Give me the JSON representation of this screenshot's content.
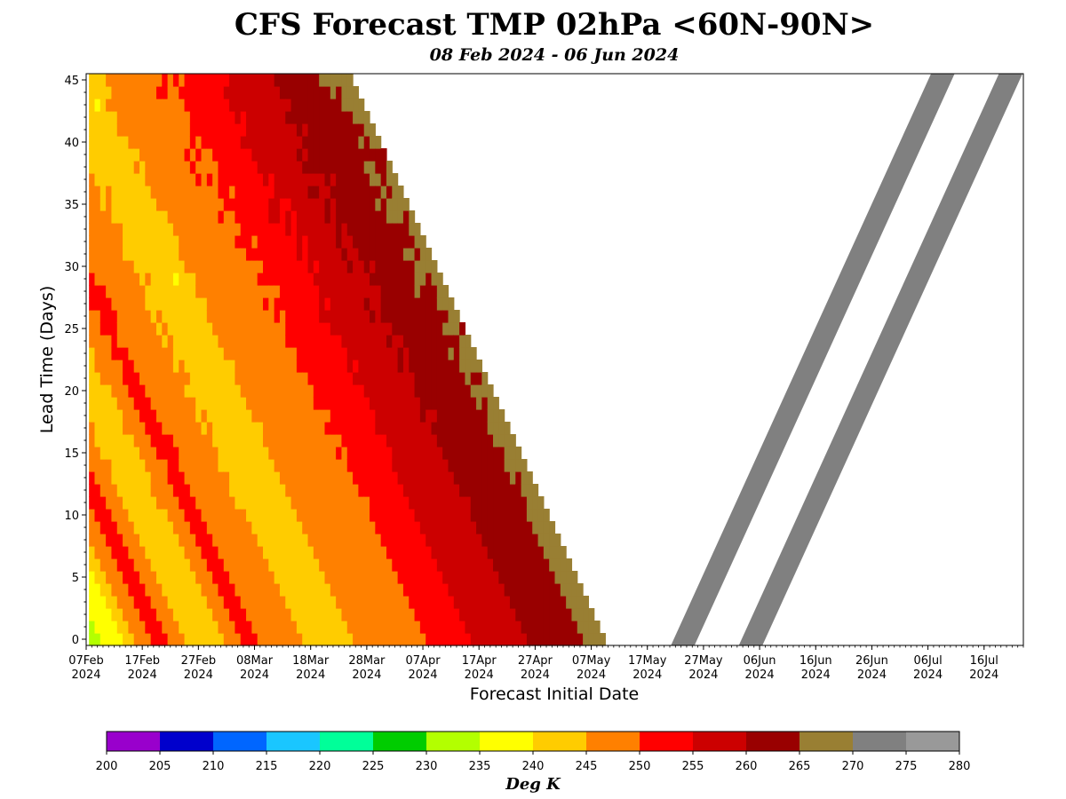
{
  "chart_data": {
    "type": "heatmap",
    "title": "CFS Forecast TMP 02hPa <60N-90N>",
    "subtitle": "08 Feb 2024 - 06 Jun 2024",
    "xlabel": "Forecast Initial Date",
    "ylabel": "Lead Time (Days)",
    "x_range": [
      "2024-02-07",
      "2024-07-23"
    ],
    "y_range": [
      -0.5,
      45.5
    ],
    "y_ticks": [
      0,
      5,
      10,
      15,
      20,
      25,
      30,
      35,
      40,
      45
    ],
    "x_ticks": [
      {
        "date": "2024-02-07",
        "label": [
          "07Feb",
          "2024"
        ]
      },
      {
        "date": "2024-02-17",
        "label": [
          "17Feb",
          "2024"
        ]
      },
      {
        "date": "2024-02-27",
        "label": [
          "27Feb",
          "2024"
        ]
      },
      {
        "date": "2024-03-08",
        "label": [
          "08Mar",
          "2024"
        ]
      },
      {
        "date": "2024-03-18",
        "label": [
          "18Mar",
          "2024"
        ]
      },
      {
        "date": "2024-03-28",
        "label": [
          "28Mar",
          "2024"
        ]
      },
      {
        "date": "2024-04-07",
        "label": [
          "07Apr",
          "2024"
        ]
      },
      {
        "date": "2024-04-17",
        "label": [
          "17Apr",
          "2024"
        ]
      },
      {
        "date": "2024-04-27",
        "label": [
          "27Apr",
          "2024"
        ]
      },
      {
        "date": "2024-05-07",
        "label": [
          "07May",
          "2024"
        ]
      },
      {
        "date": "2024-05-17",
        "label": [
          "17May",
          "2024"
        ]
      },
      {
        "date": "2024-05-27",
        "label": [
          "27May",
          "2024"
        ]
      },
      {
        "date": "2024-06-06",
        "label": [
          "06Jun",
          "2024"
        ]
      },
      {
        "date": "2024-06-16",
        "label": [
          "16Jun",
          "2024"
        ]
      },
      {
        "date": "2024-06-26",
        "label": [
          "26Jun",
          "2024"
        ]
      },
      {
        "date": "2024-07-06",
        "label": [
          "06Jul",
          "2024"
        ]
      },
      {
        "date": "2024-07-16",
        "label": [
          "16Jul",
          "2024"
        ]
      }
    ],
    "colorbar": {
      "label": "Deg K",
      "bounds": [
        200,
        205,
        210,
        215,
        220,
        225,
        230,
        235,
        240,
        245,
        250,
        255,
        260,
        265,
        270,
        275,
        280
      ],
      "colors": [
        "#9900cc",
        "#0000cc",
        "#0066ff",
        "#1ac6ff",
        "#00ff99",
        "#00cc00",
        "#b3ff00",
        "#ffff00",
        "#ffcc00",
        "#ff8000",
        "#ff0000",
        "#cc0000",
        "#990000",
        "#997f33",
        "#808080",
        "#999999"
      ]
    },
    "verification_temperature_K": [
      {
        "date": "2024-02-08",
        "value": 233
      },
      {
        "date": "2024-02-12",
        "value": 238
      },
      {
        "date": "2024-02-16",
        "value": 245
      },
      {
        "date": "2024-02-20",
        "value": 252
      },
      {
        "date": "2024-02-24",
        "value": 246
      },
      {
        "date": "2024-02-28",
        "value": 241
      },
      {
        "date": "2024-03-03",
        "value": 246
      },
      {
        "date": "2024-03-07",
        "value": 252
      },
      {
        "date": "2024-03-11",
        "value": 247
      },
      {
        "date": "2024-03-15",
        "value": 246
      },
      {
        "date": "2024-03-19",
        "value": 243
      },
      {
        "date": "2024-03-23",
        "value": 241
      },
      {
        "date": "2024-03-27",
        "value": 247
      },
      {
        "date": "2024-04-01",
        "value": 248
      },
      {
        "date": "2024-04-06",
        "value": 249
      },
      {
        "date": "2024-04-11",
        "value": 252
      },
      {
        "date": "2024-04-16",
        "value": 255
      },
      {
        "date": "2024-04-21",
        "value": 258
      },
      {
        "date": "2024-04-26",
        "value": 260
      },
      {
        "date": "2024-05-01",
        "value": 262
      },
      {
        "date": "2024-05-06",
        "value": 265
      },
      {
        "date": "2024-05-09",
        "value": 266
      }
    ]
  }
}
